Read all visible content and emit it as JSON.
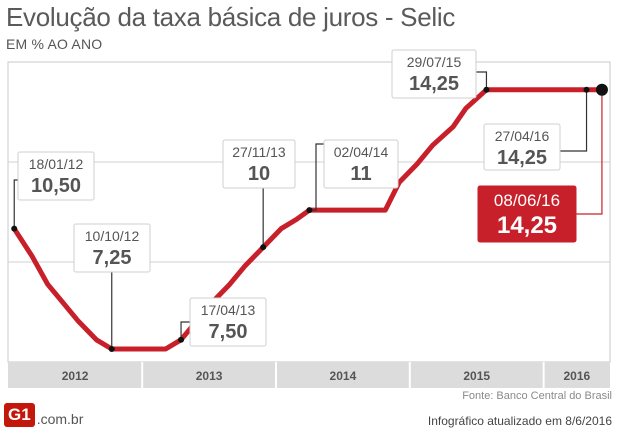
{
  "header": {
    "title": "Evolução da taxa básica de juros - Selic",
    "subtitle": "EM % AO ANO"
  },
  "footer": {
    "source": "Fonte: Banco Central do Brasil",
    "updated": "Infográfico atualizado em 8/6/2016",
    "logo_mark": "G1",
    "logo_suffix": ".com.br"
  },
  "colors": {
    "line": "#c8202b",
    "highlight_box": "#c8202b",
    "axis_band": "#dcdcdc",
    "grid": "#d2d2d2",
    "plot_border": "#c8c8c8",
    "label_date": "#555555",
    "label_value": "#555555"
  },
  "chart_data": {
    "type": "line",
    "title": "Evolução da taxa básica de juros - Selic",
    "subtitle": "EM % AO ANO",
    "xlabel": "",
    "ylabel": "",
    "x_range": [
      "2012-01-01",
      "2016-06-30"
    ],
    "ylim": [
      6.9,
      15.0
    ],
    "grid": "horizontal",
    "years": [
      "2012",
      "2013",
      "2014",
      "2015",
      "2016"
    ],
    "series": [
      {
        "values": [
          {
            "x": "2012-01-18",
            "y": 10.5
          },
          {
            "x": "2012-03-07",
            "y": 9.75
          },
          {
            "x": "2012-04-18",
            "y": 9.0
          },
          {
            "x": "2012-05-30",
            "y": 8.5
          },
          {
            "x": "2012-07-11",
            "y": 8.0
          },
          {
            "x": "2012-08-29",
            "y": 7.5
          },
          {
            "x": "2012-10-10",
            "y": 7.25
          },
          {
            "x": "2013-03-06",
            "y": 7.25
          },
          {
            "x": "2013-04-17",
            "y": 7.5
          },
          {
            "x": "2013-05-29",
            "y": 8.0
          },
          {
            "x": "2013-07-10",
            "y": 8.5
          },
          {
            "x": "2013-08-28",
            "y": 9.0
          },
          {
            "x": "2013-10-09",
            "y": 9.5
          },
          {
            "x": "2013-11-27",
            "y": 10.0
          },
          {
            "x": "2014-01-15",
            "y": 10.5
          },
          {
            "x": "2014-02-26",
            "y": 10.75
          },
          {
            "x": "2014-04-02",
            "y": 11.0
          },
          {
            "x": "2014-10-26",
            "y": 11.0
          },
          {
            "x": "2014-12-03",
            "y": 11.75
          },
          {
            "x": "2015-01-21",
            "y": 12.25
          },
          {
            "x": "2015-03-04",
            "y": 12.75
          },
          {
            "x": "2015-04-29",
            "y": 13.25
          },
          {
            "x": "2015-06-03",
            "y": 13.75
          },
          {
            "x": "2015-07-29",
            "y": 14.25
          },
          {
            "x": "2016-04-27",
            "y": 14.25
          },
          {
            "x": "2016-06-08",
            "y": 14.25
          }
        ]
      }
    ],
    "annotations": [
      {
        "date": "18/01/12",
        "value": "10,50",
        "x": "2012-01-18",
        "y": 10.5,
        "box": "above",
        "highlight": false
      },
      {
        "date": "10/10/12",
        "value": "7,25",
        "x": "2012-10-10",
        "y": 7.25,
        "box": "above",
        "highlight": false
      },
      {
        "date": "17/04/13",
        "value": "7,50",
        "x": "2013-04-17",
        "y": 7.5,
        "box": "below",
        "highlight": false
      },
      {
        "date": "27/11/13",
        "value": "10",
        "x": "2013-11-27",
        "y": 10.0,
        "box": "above",
        "highlight": false
      },
      {
        "date": "02/04/14",
        "value": "11",
        "x": "2014-04-02",
        "y": 11.0,
        "box": "above",
        "highlight": false
      },
      {
        "date": "29/07/15",
        "value": "14,25",
        "x": "2015-07-29",
        "y": 14.25,
        "box": "above",
        "highlight": false
      },
      {
        "date": "27/04/16",
        "value": "14,25",
        "x": "2016-04-27",
        "y": 14.25,
        "box": "below",
        "highlight": false
      },
      {
        "date": "08/06/16",
        "value": "14,25",
        "x": "2016-06-08",
        "y": 14.25,
        "box": "below",
        "highlight": true
      }
    ]
  }
}
